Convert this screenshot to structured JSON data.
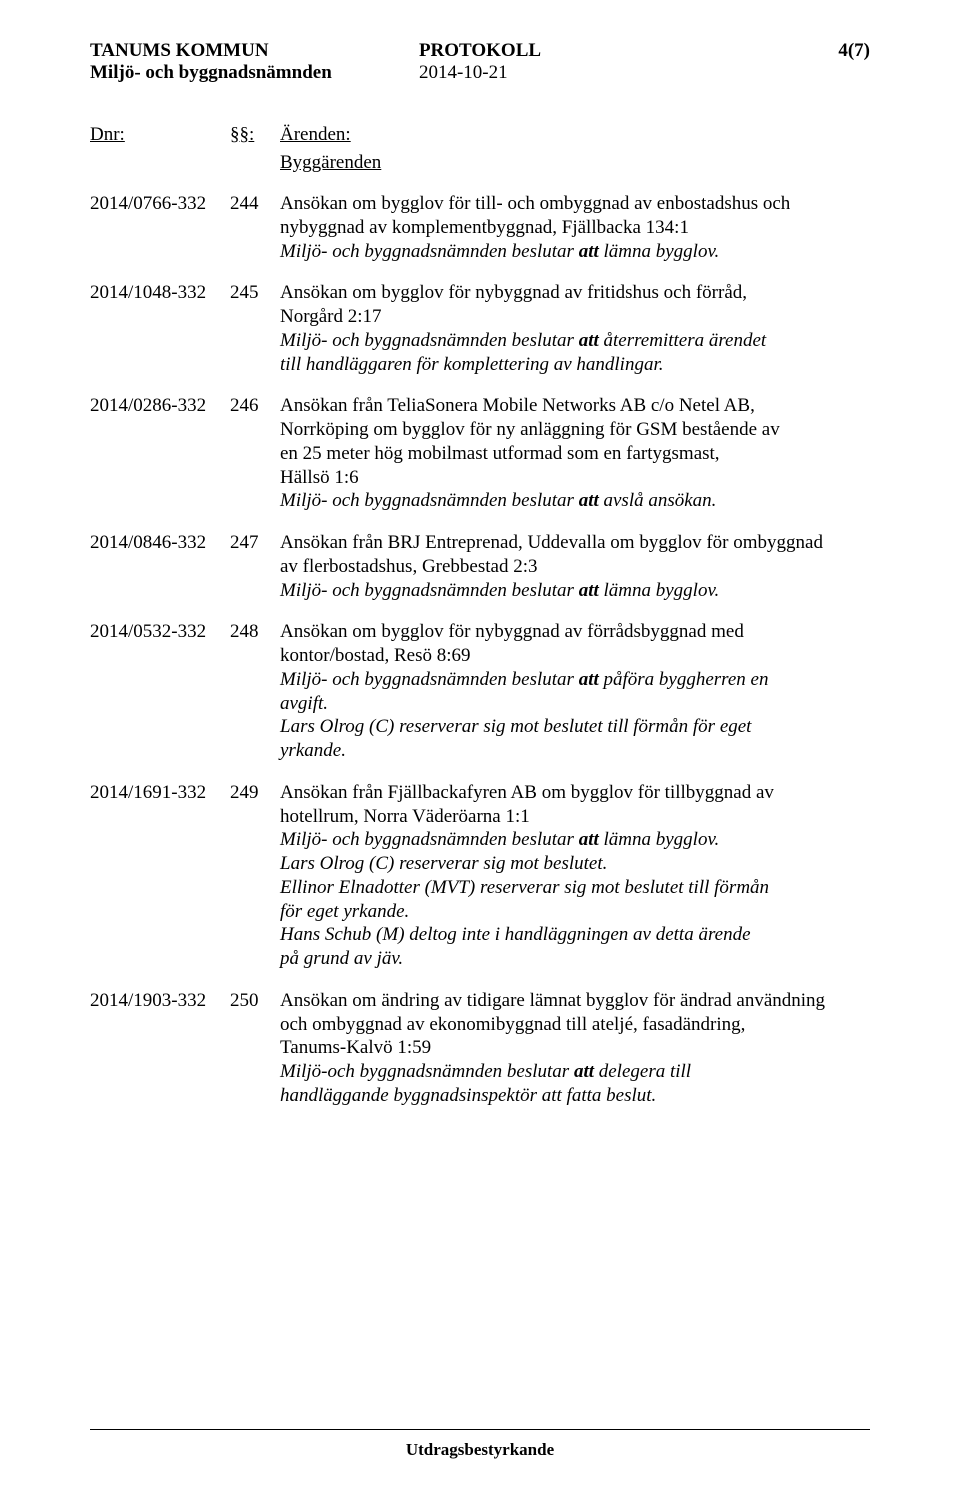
{
  "header": {
    "org_name": "TANUMS KOMMUN",
    "committee": "Miljö- och byggnadsnämnden",
    "doc_type": "PROTOKOLL",
    "doc_date": "2014-10-21",
    "page_num": "4(7)"
  },
  "columns": {
    "dnr": "Dnr:",
    "sec": "§§:",
    "title": "Ärenden:"
  },
  "section_heading": "Byggärenden",
  "entries": [
    {
      "dnr": "2014/0766-332",
      "sec": "244",
      "lines": [
        {
          "text": "Ansökan om bygglov för till- och ombyggnad av enbostadshus och",
          "italic": false
        },
        {
          "text": "nybyggnad av komplementbyggnad, Fjällbacka 134:1",
          "italic": false
        },
        {
          "text": "Miljö- och byggnadsnämnden beslutar att lämna bygglov.",
          "italic": true,
          "bold_word": "att"
        }
      ]
    },
    {
      "dnr": "2014/1048-332",
      "sec": "245",
      "lines": [
        {
          "text": "Ansökan om bygglov för nybyggnad av fritidshus och förråd,",
          "italic": false
        },
        {
          "text": "Norgård 2:17",
          "italic": false
        },
        {
          "text": "Miljö- och byggnadsnämnden beslutar  att återremittera ärendet",
          "italic": true,
          "bold_word": "att"
        },
        {
          "text": "till handläggaren för komplettering av handlingar.",
          "italic": true
        }
      ]
    },
    {
      "dnr": "2014/0286-332",
      "sec": "246",
      "lines": [
        {
          "text": "Ansökan från TeliaSonera Mobile Networks AB c/o Netel AB,",
          "italic": false
        },
        {
          "text": "Norrköping om bygglov för ny anläggning för GSM bestående av",
          "italic": false
        },
        {
          "text": "en 25 meter hög mobilmast utformad som en fartygsmast,",
          "italic": false
        },
        {
          "text": "Hällsö 1:6",
          "italic": false
        },
        {
          "text": "Miljö- och byggnadsnämnden beslutar  att avslå ansökan.",
          "italic": true,
          "bold_word": "att"
        }
      ]
    },
    {
      "dnr": "2014/0846-332",
      "sec": "247",
      "lines": [
        {
          "text": "Ansökan från BRJ Entreprenad, Uddevalla om bygglov för ombyggnad",
          "italic": false
        },
        {
          "text": "av flerbostadshus, Grebbestad 2:3",
          "italic": false
        },
        {
          "text": "Miljö- och byggnadsnämnden beslutar att lämna bygglov.",
          "italic": true,
          "bold_word": "att"
        }
      ]
    },
    {
      "dnr": "2014/0532-332",
      "sec": "248",
      "lines": [
        {
          "text": "Ansökan om bygglov för nybyggnad av förrådsbyggnad med",
          "italic": false
        },
        {
          "text": "kontor/bostad, Resö 8:69",
          "italic": false
        },
        {
          "text": "Miljö- och byggnadsnämnden beslutar att påföra byggherren en",
          "italic": true,
          "bold_word": "att"
        },
        {
          "text": "avgift.",
          "italic": true
        },
        {
          "text": "Lars Olrog (C) reserverar sig mot beslutet till förmån för eget",
          "italic": true
        },
        {
          "text": "yrkande.",
          "italic": true
        }
      ]
    },
    {
      "dnr": "2014/1691-332",
      "sec": "249",
      "lines": [
        {
          "text": "Ansökan från Fjällbackafyren AB om bygglov för tillbyggnad av",
          "italic": false
        },
        {
          "text": "hotellrum, Norra Väderöarna 1:1",
          "italic": false
        },
        {
          "text": "Miljö- och byggnadsnämnden beslutar att lämna bygglov.",
          "italic": true,
          "bold_word": "att"
        },
        {
          "text": "Lars Olrog (C) reserverar sig mot beslutet.",
          "italic": true
        },
        {
          "text": "Ellinor Elnadotter (MVT) reserverar sig mot beslutet till förmån",
          "italic": true
        },
        {
          "text": "för eget yrkande.",
          "italic": true
        },
        {
          "text": "Hans Schub (M) deltog inte i handläggningen av detta ärende",
          "italic": true
        },
        {
          "text": "på grund av jäv.",
          "italic": true
        }
      ]
    },
    {
      "dnr": "2014/1903-332",
      "sec": "250",
      "lines": [
        {
          "text": "Ansökan om ändring av tidigare lämnat bygglov för ändrad användning",
          "italic": false
        },
        {
          "text": "och ombyggnad av ekonomibyggnad till ateljé, fasadändring,",
          "italic": false
        },
        {
          "text": "Tanums-Kalvö 1:59",
          "italic": false
        },
        {
          "text": "Miljö-och byggnadsnämnden beslutar att delegera till",
          "italic": true,
          "bold_word": "att"
        },
        {
          "text": "handläggande byggnadsinspektör att fatta beslut.",
          "italic": true
        }
      ]
    }
  ],
  "footer": {
    "label": "Utdragsbestyrkande"
  }
}
